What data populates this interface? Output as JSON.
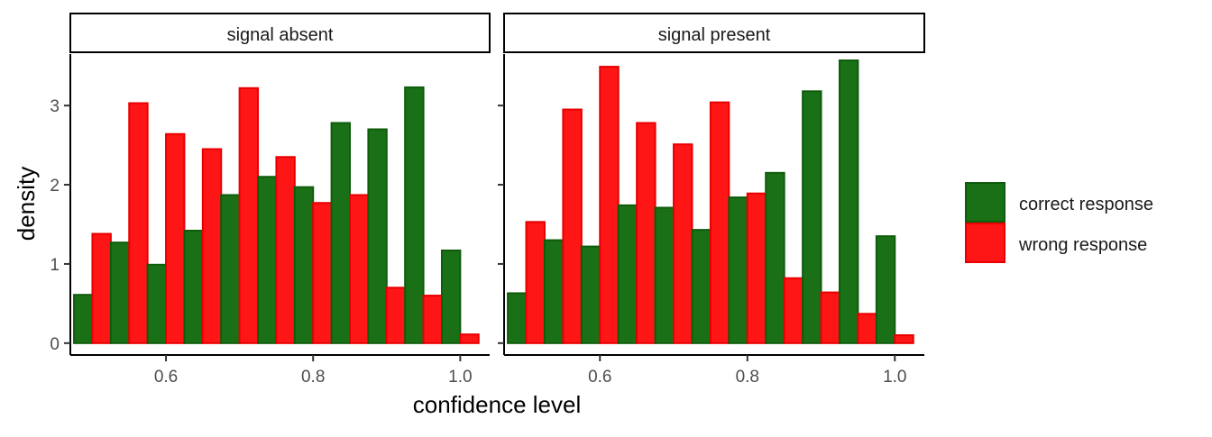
{
  "chart_data": {
    "type": "bar",
    "subtype": "faceted-dodged-histogram",
    "xlabel": "confidence level",
    "ylabel": "density",
    "xlim": [
      0.47,
      1.04
    ],
    "ylim": [
      -0.15,
      3.65
    ],
    "xticks": [
      {
        "value": 0.6,
        "label": "0.6"
      },
      {
        "value": 0.8,
        "label": "0.8"
      },
      {
        "value": 1.0,
        "label": "1.0"
      }
    ],
    "yticks": [
      {
        "value": 0,
        "label": "0"
      },
      {
        "value": 1,
        "label": "1"
      },
      {
        "value": 2,
        "label": "2"
      },
      {
        "value": 3,
        "label": "3"
      }
    ],
    "bin_width": 0.05,
    "bin_centers": [
      0.5,
      0.55,
      0.6,
      0.65,
      0.7,
      0.75,
      0.8,
      0.85,
      0.9,
      0.95,
      1.0
    ],
    "legend": {
      "position": "right",
      "items": [
        {
          "key": "correct",
          "label": " correct response",
          "fill": "#1a7016",
          "stroke": "#0f5c0c"
        },
        {
          "key": "wrong",
          "label": "wrong response",
          "fill": "#fe1616",
          "stroke": "#e80000"
        }
      ]
    },
    "grid": false,
    "panels": [
      {
        "title": "signal absent",
        "series": [
          {
            "key": "correct",
            "values": [
              0.61,
              1.27,
              0.99,
              1.42,
              1.87,
              2.1,
              1.97,
              2.78,
              2.7,
              3.23,
              1.17
            ]
          },
          {
            "key": "wrong",
            "values": [
              1.38,
              3.03,
              2.64,
              2.45,
              3.22,
              2.35,
              1.77,
              1.87,
              0.7,
              0.6,
              0.11
            ]
          }
        ]
      },
      {
        "title": "signal present",
        "series": [
          {
            "key": "correct",
            "values": [
              0.63,
              1.3,
              1.22,
              1.74,
              1.71,
              1.43,
              1.84,
              2.15,
              3.18,
              3.57,
              1.35
            ]
          },
          {
            "key": "wrong",
            "values": [
              1.53,
              2.95,
              3.49,
              2.78,
              2.51,
              3.04,
              1.89,
              0.82,
              0.64,
              0.37,
              0.1
            ]
          }
        ]
      }
    ]
  }
}
